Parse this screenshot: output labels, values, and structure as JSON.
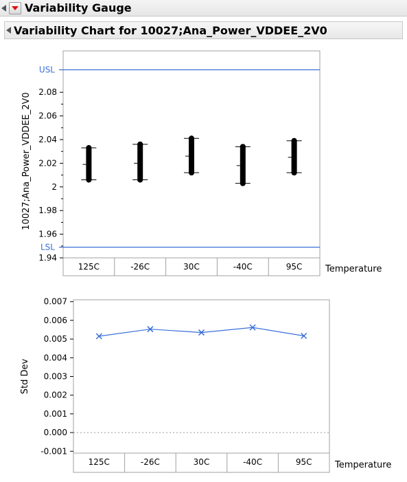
{
  "outline": {
    "title": "Variability Gauge",
    "subtitle": "Variability Chart for 10027;Ana_Power_VDDEE_2V0"
  },
  "colors": {
    "spec_line": "#3a6fd8",
    "series": "#3a6fd8",
    "points": "#000000"
  },
  "chart_data": [
    {
      "type": "scatter",
      "ylabel": "10027;Ana_Power_VDDEE_2V0",
      "xlabel": "Temperature",
      "categories": [
        "125C",
        "-26C",
        "30C",
        "-40C",
        "95C"
      ],
      "ylim": [
        1.94,
        2.115
      ],
      "yticks": [
        1.94,
        1.96,
        1.98,
        2,
        2.02,
        2.04,
        2.06,
        2.08
      ],
      "ytick_labels": [
        "1.94",
        "1.96",
        "1.98",
        "2",
        "2.02",
        "2.04",
        "2.06",
        "2.08"
      ],
      "reference_lines": [
        {
          "label": "USL",
          "value": 2.099
        },
        {
          "label": "LSL",
          "value": 1.949
        }
      ],
      "groups": [
        {
          "category": "125C",
          "min": 2.006,
          "max": 2.033,
          "mean": 2.019
        },
        {
          "category": "-26C",
          "min": 2.006,
          "max": 2.036,
          "mean": 2.02
        },
        {
          "category": "30C",
          "min": 2.012,
          "max": 2.041,
          "mean": 2.026
        },
        {
          "category": "-40C",
          "min": 2.003,
          "max": 2.034,
          "mean": 2.018
        },
        {
          "category": "95C",
          "min": 2.012,
          "max": 2.039,
          "mean": 2.025
        }
      ],
      "grid": false
    },
    {
      "type": "line",
      "ylabel": "Std Dev",
      "xlabel": "Temperature",
      "categories": [
        "125C",
        "-26C",
        "30C",
        "-40C",
        "95C"
      ],
      "values": [
        0.00515,
        0.00553,
        0.00535,
        0.00562,
        0.00517
      ],
      "ylim": [
        -0.0011,
        0.0071
      ],
      "yticks": [
        -0.001,
        0,
        0.001,
        0.002,
        0.003,
        0.004,
        0.005,
        0.006,
        0.007
      ],
      "ytick_labels": [
        "-0.001",
        "0.000",
        "0.001",
        "0.002",
        "0.003",
        "0.004",
        "0.005",
        "0.006",
        "0.007"
      ],
      "marker": "x",
      "zero_line": "dotted",
      "grid": false
    }
  ]
}
